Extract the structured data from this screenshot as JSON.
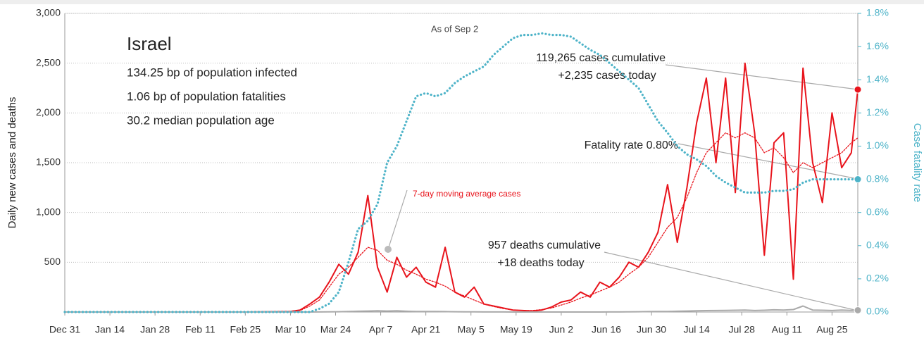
{
  "chart_data": {
    "type": "line",
    "title": "Israel",
    "subtitle": [
      "134.25 bp of population infected",
      "1.06 bp of population fatalities",
      "30.2 median population age"
    ],
    "y_label": "Daily new cases and deaths",
    "y2_label": "Case fatality rate",
    "annotations": [
      "As of Sep 2",
      "119,265 cases cumulative",
      "+2,235 cases today",
      "Fatality rate 0.80%",
      "957 deaths cumulative",
      "+18 deaths today"
    ],
    "x": [
      0,
      14,
      28,
      42,
      56,
      70,
      73,
      76,
      79,
      82,
      85,
      88,
      91,
      94,
      97,
      100,
      103,
      106,
      109,
      112,
      115,
      118,
      121,
      124,
      127,
      130,
      133,
      136,
      139,
      142,
      145,
      148,
      151,
      154,
      157,
      160,
      163,
      166,
      169,
      172,
      175,
      178,
      181,
      184,
      187,
      190,
      193,
      196,
      199,
      202,
      205,
      208,
      211,
      214,
      217,
      220,
      223,
      226,
      229,
      232,
      235,
      238,
      241,
      244,
      246
    ],
    "xlim": [
      0,
      246
    ],
    "xticks": [
      {
        "value": 0,
        "label": "Dec 31"
      },
      {
        "value": 14,
        "label": "Jan 14"
      },
      {
        "value": 28,
        "label": "Jan 28"
      },
      {
        "value": 42,
        "label": "Feb 11"
      },
      {
        "value": 56,
        "label": "Feb 25"
      },
      {
        "value": 70,
        "label": "Mar 10"
      },
      {
        "value": 84,
        "label": "Mar 24"
      },
      {
        "value": 98,
        "label": "Apr 7"
      },
      {
        "value": 112,
        "label": "Apr 21"
      },
      {
        "value": 126,
        "label": "May 5"
      },
      {
        "value": 140,
        "label": "May 19"
      },
      {
        "value": 154,
        "label": "Jun 2"
      },
      {
        "value": 168,
        "label": "Jun 16"
      },
      {
        "value": 182,
        "label": "Jun 30"
      },
      {
        "value": 196,
        "label": "Jul 14"
      },
      {
        "value": 210,
        "label": "Jul 28"
      },
      {
        "value": 224,
        "label": "Aug 11"
      },
      {
        "value": 238,
        "label": "Aug 25"
      }
    ],
    "ylim": [
      0,
      3000
    ],
    "yticks": [
      500,
      {
        "value": 1000,
        "label": "1,000"
      },
      {
        "value": 1500,
        "label": "1,500"
      },
      {
        "value": 2000,
        "label": "2,000"
      },
      {
        "value": 2500,
        "label": "2,500"
      },
      {
        "value": 3000,
        "label": "3,000"
      }
    ],
    "y2lim": [
      0,
      1.8
    ],
    "y2ticks": [
      {
        "value": 0,
        "label": "0.0%"
      },
      {
        "value": 0.2,
        "label": "0.2%"
      },
      {
        "value": 0.4,
        "label": "0.4%"
      },
      {
        "value": 0.6,
        "label": "0.6%"
      },
      {
        "value": 0.8,
        "label": "0.8%"
      },
      {
        "value": 1.0,
        "label": "1.0%"
      },
      {
        "value": 1.2,
        "label": "1.2%"
      },
      {
        "value": 1.4,
        "label": "1.4%"
      },
      {
        "value": 1.6,
        "label": "1.6%"
      },
      {
        "value": 1.8,
        "label": "1.8%"
      }
    ],
    "grid": true,
    "series": [
      {
        "color": "#e8141c",
        "dash": "solid",
        "end_marker": true,
        "values": [
          0,
          0,
          0,
          0,
          0,
          5,
          20,
          80,
          150,
          300,
          480,
          380,
          600,
          1170,
          450,
          200,
          550,
          350,
          450,
          300,
          250,
          650,
          200,
          150,
          250,
          80,
          60,
          40,
          20,
          15,
          10,
          20,
          50,
          100,
          120,
          200,
          150,
          300,
          250,
          350,
          500,
          450,
          600,
          800,
          1280,
          700,
          1250,
          1900,
          2350,
          1500,
          2350,
          1200,
          2500,
          1800,
          570,
          1700,
          1800,
          330,
          2450,
          1500,
          1100,
          2000,
          1450,
          1600,
          2235
        ]
      },
      {
        "name": "7-day moving average cases",
        "color": "#e8141c",
        "dash": "dotted",
        "end_marker": false,
        "values": [
          0,
          0,
          0,
          0,
          0,
          5,
          15,
          60,
          120,
          250,
          380,
          450,
          550,
          650,
          620,
          520,
          480,
          420,
          380,
          330,
          300,
          260,
          200,
          160,
          120,
          80,
          55,
          35,
          20,
          15,
          15,
          25,
          40,
          70,
          100,
          140,
          170,
          210,
          250,
          300,
          380,
          450,
          550,
          700,
          850,
          950,
          1150,
          1400,
          1600,
          1700,
          1800,
          1750,
          1800,
          1750,
          1600,
          1650,
          1550,
          1400,
          1500,
          1450,
          1500,
          1550,
          1600,
          1700,
          1750
        ]
      },
      {
        "color": "#aaaaaa",
        "dash": "solid",
        "end_marker": true,
        "values": [
          0,
          0,
          0,
          0,
          0,
          0,
          0,
          0,
          1,
          2,
          3,
          5,
          8,
          10,
          12,
          10,
          12,
          8,
          6,
          5,
          5,
          4,
          3,
          2,
          2,
          1,
          1,
          1,
          0,
          0,
          0,
          0,
          0,
          0,
          0,
          0,
          0,
          0,
          1,
          1,
          2,
          3,
          4,
          5,
          6,
          8,
          10,
          12,
          14,
          15,
          16,
          18,
          20,
          15,
          18,
          22,
          20,
          25,
          60,
          20,
          18,
          15,
          20,
          16,
          18
        ]
      },
      {
        "color": "#4db3c8",
        "dash": "dotted",
        "axis": "y2",
        "end_marker": true,
        "values": [
          0,
          0,
          0,
          0,
          0,
          0,
          0,
          0,
          0.02,
          0.05,
          0.12,
          0.3,
          0.5,
          0.55,
          0.65,
          0.9,
          1.0,
          1.15,
          1.3,
          1.32,
          1.3,
          1.32,
          1.38,
          1.42,
          1.45,
          1.48,
          1.55,
          1.6,
          1.65,
          1.67,
          1.67,
          1.68,
          1.67,
          1.67,
          1.66,
          1.62,
          1.58,
          1.55,
          1.5,
          1.45,
          1.4,
          1.35,
          1.25,
          1.15,
          1.08,
          1.0,
          0.95,
          0.92,
          0.88,
          0.82,
          0.78,
          0.75,
          0.72,
          0.72,
          0.72,
          0.73,
          0.73,
          0.74,
          0.78,
          0.8,
          0.8,
          0.8,
          0.8,
          0.8,
          0.8
        ]
      }
    ]
  }
}
